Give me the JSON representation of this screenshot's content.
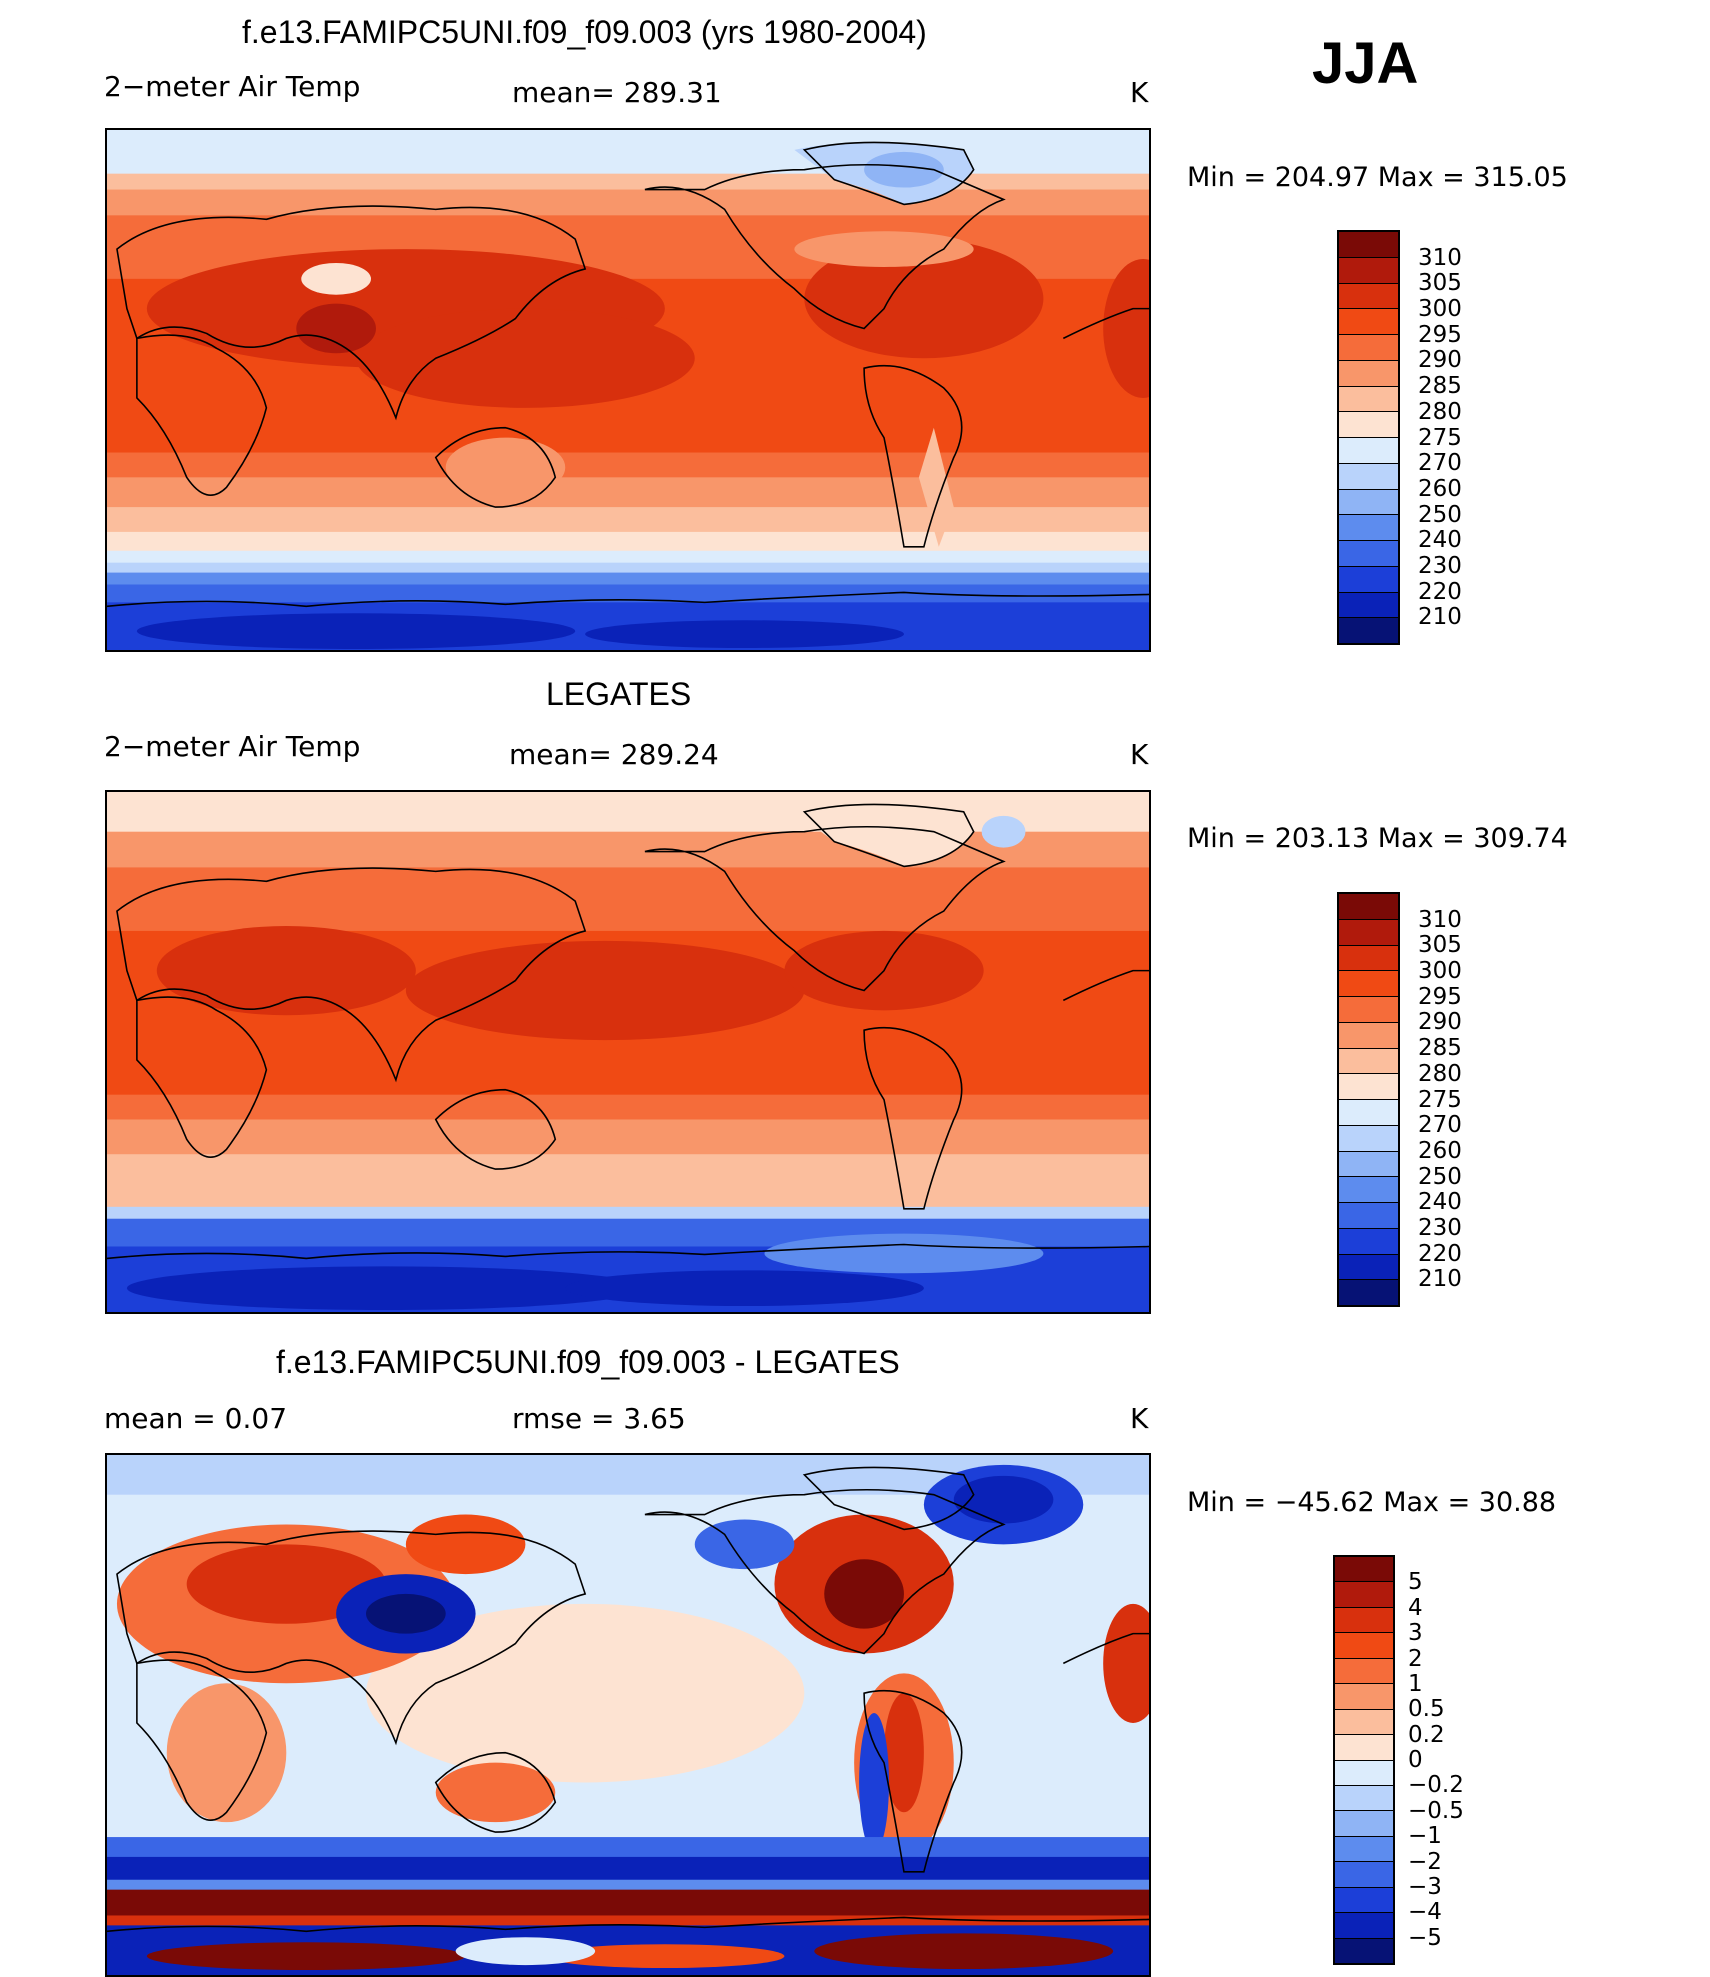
{
  "season": "JJA",
  "units": "K",
  "panels": [
    {
      "title": "f.e13.FAMIPC5UNI.f09_f09.003 (yrs 1980-2004)",
      "left_label": "2−meter Air Temp",
      "mid_label": "mean=  289.31",
      "minmax": "Min  =  204.97  Max  =  315.05"
    },
    {
      "title": "LEGATES",
      "left_label": "2−meter Air Temp",
      "mid_label": "mean=  289.24",
      "minmax": "Min  =  203.13  Max  =  309.74"
    },
    {
      "title": "f.e13.FAMIPC5UNI.f09_f09.003 - LEGATES",
      "left_label": "mean  =      0.07",
      "mid_label": "rmse  =      3.65",
      "minmax": "Min  =  −45.62  Max  =     30.88"
    }
  ],
  "colorbars": {
    "temperature": {
      "labels": [
        "310",
        "305",
        "300",
        "295",
        "290",
        "285",
        "280",
        "275",
        "270",
        "260",
        "250",
        "240",
        "230",
        "220",
        "210"
      ],
      "colors": [
        "#7a0a06",
        "#b01a0c",
        "#d8300d",
        "#f04a14",
        "#f56c3a",
        "#f8966a",
        "#fbbe9d",
        "#fde3d2",
        "#dcecfc",
        "#b9d3fb",
        "#8fb4f5",
        "#5d8cee",
        "#3a66e6",
        "#1c3fd8",
        "#0a22b8",
        "#061275"
      ]
    },
    "difference": {
      "labels": [
        "5",
        "4",
        "3",
        "2",
        "1",
        "0.5",
        "0.2",
        "0",
        "−0.2",
        "−0.5",
        "−1",
        "−2",
        "−3",
        "−4",
        "−5"
      ],
      "colors": [
        "#7a0a06",
        "#b01a0c",
        "#d8300d",
        "#f04a14",
        "#f56c3a",
        "#f8966a",
        "#fbbe9d",
        "#fde3d2",
        "#dcecfc",
        "#b9d3fb",
        "#8fb4f5",
        "#5d8cee",
        "#3a66e6",
        "#1c3fd8",
        "#0a22b8",
        "#061275"
      ]
    }
  }
}
